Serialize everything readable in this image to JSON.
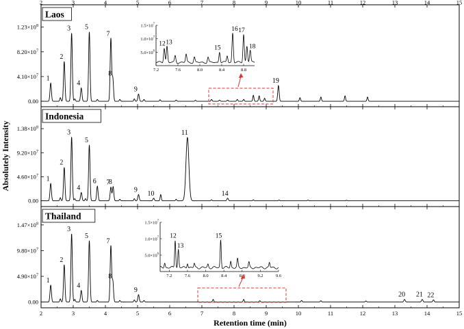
{
  "chart_data": {
    "type": "line",
    "xlabel": "Retention time (min)",
    "ylabel": "Absolutely Intensity",
    "xlim": [
      2,
      15
    ],
    "xticks": [
      "2",
      "3",
      "4",
      "5",
      "6",
      "7",
      "8",
      "9",
      "10",
      "11",
      "12",
      "13",
      "14",
      "15"
    ],
    "panels": [
      {
        "name": "Laos",
        "ylim": [
          -9000000,
          160000000
        ],
        "yticks": [
          {
            "value": 0,
            "label": "0.00"
          },
          {
            "value": 41000000,
            "label": "4.10x10^7"
          },
          {
            "value": 82000000,
            "label": "8.20x10^7"
          },
          {
            "value": 123000000,
            "label": "1.23x10^8"
          }
        ],
        "peaks": [
          {
            "label": "1",
            "x": 2.3,
            "y": 30000000
          },
          {
            "label": "2",
            "x": 2.72,
            "y": 66000000
          },
          {
            "label": "3",
            "x": 2.95,
            "y": 113000000
          },
          {
            "label": "4",
            "x": 3.25,
            "y": 22000000
          },
          {
            "label": "5",
            "x": 3.5,
            "y": 115000000
          },
          {
            "label": "7",
            "x": 4.17,
            "y": 104000000
          },
          {
            "label": "8",
            "x": 4.23,
            "y": 38000000
          },
          {
            "label": "9",
            "x": 5.03,
            "y": 12000000
          },
          {
            "label": "19",
            "x": 9.38,
            "y": 26000000
          }
        ],
        "minor_peaks": [
          [
            2.6,
            6000000
          ],
          [
            3.05,
            4000000
          ],
          [
            3.75,
            3000000
          ],
          [
            4.45,
            3000000
          ],
          [
            4.9,
            4000000
          ],
          [
            5.2,
            3000000
          ],
          [
            5.7,
            2500000
          ],
          [
            6.2,
            2000000
          ],
          [
            6.8,
            1500000
          ],
          [
            7.3,
            3000000
          ],
          [
            7.55,
            2000000
          ],
          [
            7.8,
            2000000
          ],
          [
            8.1,
            3000000
          ],
          [
            8.3,
            3000000
          ],
          [
            8.6,
            10000000
          ],
          [
            8.78,
            9000000
          ],
          [
            8.95,
            5000000
          ],
          [
            10.05,
            6000000
          ],
          [
            10.7,
            7000000
          ],
          [
            11.45,
            9000000
          ],
          [
            12.15,
            7000000
          ]
        ],
        "inset": {
          "xlim": [
            7.2,
            9.0
          ],
          "ylim": [
            0,
            15000000
          ],
          "xticks": [
            "7.2",
            "7.6",
            "8.0",
            "8.4",
            "8.8"
          ],
          "yticks": [
            {
              "value": 5000000,
              "label": "5.0x10^6"
            },
            {
              "value": 10000000,
              "label": "1.0x10^7"
            },
            {
              "value": 15000000,
              "label": "1.5x10^7"
            }
          ],
          "peaks": [
            {
              "label": "12",
              "x": 7.35,
              "y": 5500000
            },
            {
              "label": "13",
              "x": 7.4,
              "y": 6000000
            },
            {
              "label": "15",
              "x": 8.36,
              "y": 4000000
            },
            {
              "label": "16",
              "x": 8.6,
              "y": 11000000
            },
            {
              "label": "17",
              "x": 8.8,
              "y": 10500000
            },
            {
              "label": "18",
              "x": 8.92,
              "y": 4500000
            }
          ],
          "minor_peaks": [
            [
              7.55,
              2500000
            ],
            [
              7.75,
              3000000
            ],
            [
              7.9,
              2000000
            ],
            [
              8.15,
              2000000
            ],
            [
              8.5,
              2500000
            ],
            [
              8.86,
              6000000
            ]
          ]
        }
      },
      {
        "name": "Indonesia",
        "ylim": [
          -11000000,
          180000000
        ],
        "yticks": [
          {
            "value": 0,
            "label": "0.00"
          },
          {
            "value": 46000000,
            "label": "4.60x10^7"
          },
          {
            "value": 92000000,
            "label": "9.20x10^7"
          },
          {
            "value": 138000000,
            "label": "1.38x10^8"
          }
        ],
        "peaks": [
          {
            "label": "1",
            "x": 2.3,
            "y": 33000000
          },
          {
            "label": "2",
            "x": 2.72,
            "y": 64000000
          },
          {
            "label": "3",
            "x": 2.95,
            "y": 122000000
          },
          {
            "label": "4",
            "x": 3.25,
            "y": 16000000
          },
          {
            "label": "5",
            "x": 3.5,
            "y": 107000000
          },
          {
            "label": "6",
            "x": 3.75,
            "y": 28000000
          },
          {
            "label": "7",
            "x": 4.17,
            "y": 26000000
          },
          {
            "label": "8",
            "x": 4.24,
            "y": 27000000
          },
          {
            "label": "9",
            "x": 5.03,
            "y": 12000000
          },
          {
            "label": "10",
            "x": 5.5,
            "y": 5000000
          },
          {
            "label": "11",
            "x": 6.55,
            "y": 121000000
          },
          {
            "label": "14",
            "x": 7.8,
            "y": 5000000
          }
        ],
        "minor_peaks": [
          [
            2.6,
            6000000
          ],
          [
            3.05,
            4000000
          ],
          [
            3.38,
            4000000
          ],
          [
            4.45,
            3000000
          ],
          [
            4.9,
            4000000
          ],
          [
            5.72,
            12000000
          ],
          [
            6.2,
            3000000
          ],
          [
            7.3,
            2000000
          ],
          [
            8.6,
            2000000
          ],
          [
            9.4,
            1500000
          ],
          [
            10.3,
            1500000
          ],
          [
            11.5,
            1000000
          ]
        ]
      },
      {
        "name": "Thailand",
        "ylim": [
          -11000000,
          182000000
        ],
        "yticks": [
          {
            "value": 0,
            "label": "0.00"
          },
          {
            "value": 49000000,
            "label": "4.90x10^7"
          },
          {
            "value": 98000000,
            "label": "9.80x10^7"
          },
          {
            "value": 147000000,
            "label": "1.47x10^8"
          }
        ],
        "peaks": [
          {
            "label": "1",
            "x": 2.3,
            "y": 32000000
          },
          {
            "label": "2",
            "x": 2.72,
            "y": 71000000
          },
          {
            "label": "3",
            "x": 2.95,
            "y": 130000000
          },
          {
            "label": "4",
            "x": 3.25,
            "y": 22000000
          },
          {
            "label": "5",
            "x": 3.5,
            "y": 117000000
          },
          {
            "label": "7",
            "x": 4.17,
            "y": 107000000
          },
          {
            "label": "8",
            "x": 4.23,
            "y": 40000000
          },
          {
            "label": "9",
            "x": 5.03,
            "y": 14000000
          },
          {
            "label": "20",
            "x": 13.3,
            "y": 5000000
          },
          {
            "label": "21",
            "x": 13.85,
            "y": 5000000
          },
          {
            "label": "22",
            "x": 14.2,
            "y": 4000000
          }
        ],
        "minor_peaks": [
          [
            2.6,
            6000000
          ],
          [
            3.05,
            5000000
          ],
          [
            3.75,
            3000000
          ],
          [
            4.45,
            3000000
          ],
          [
            4.9,
            4000000
          ],
          [
            5.2,
            3000000
          ],
          [
            7.35,
            5000000
          ],
          [
            8.3,
            5000000
          ],
          [
            8.8,
            2500000
          ],
          [
            10.1,
            3000000
          ],
          [
            10.7,
            2500000
          ],
          [
            12.1,
            2000000
          ]
        ],
        "inset": {
          "xlim": [
            7.0,
            9.6
          ],
          "ylim": [
            0,
            15000000
          ],
          "xticks": [
            "7.2",
            "7.6",
            "8.0",
            "8.4",
            "8.8",
            "9.2",
            "9.6"
          ],
          "yticks": [
            {
              "value": 5000000,
              "label": "5.0x10^6"
            },
            {
              "value": 10000000,
              "label": "1.0x10^7"
            },
            {
              "value": 15000000,
              "label": "1.5x10^7"
            }
          ],
          "peaks": [
            {
              "label": "12",
              "x": 7.33,
              "y": 8500000
            },
            {
              "label": "13",
              "x": 7.4,
              "y": 5500000
            },
            {
              "label": "15",
              "x": 8.33,
              "y": 8500000
            }
          ],
          "minor_peaks": [
            [
              7.1,
              1500000
            ],
            [
              7.6,
              1500000
            ],
            [
              7.75,
              1200000
            ],
            [
              8.05,
              1000000
            ],
            [
              8.55,
              2000000
            ],
            [
              8.7,
              2500000
            ],
            [
              8.95,
              1500000
            ],
            [
              9.4,
              1500000
            ]
          ]
        }
      }
    ]
  }
}
